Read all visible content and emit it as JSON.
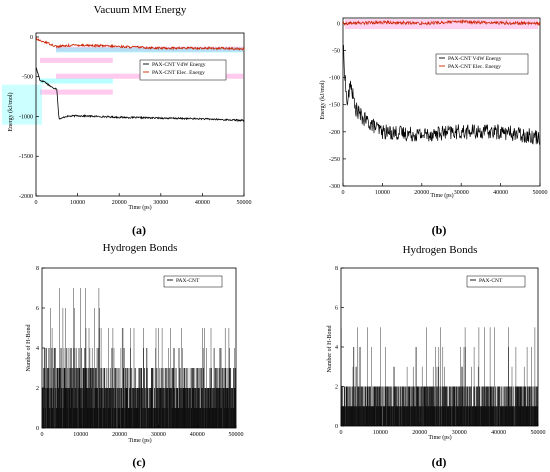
{
  "panels": [
    {
      "id": "a",
      "label": "(a)",
      "chart_data": {
        "type": "line",
        "title": "Vacuum MM Energy",
        "xlabel": "Time (ps)",
        "ylabel": "Energy (kJ/mol)",
        "xlim": [
          0,
          50000
        ],
        "ylim": [
          -2000,
          50
        ],
        "xticks": [
          0,
          10000,
          20000,
          30000,
          40000,
          50000
        ],
        "yticks": [
          -2000,
          -1500,
          -1000,
          -500,
          0
        ],
        "xtick_labels": [
          "0",
          "10000",
          "20000",
          "30000",
          "40000",
          "50000"
        ],
        "ytick_labels": [
          "-2000",
          "-1500",
          "-1000",
          "-500",
          "0"
        ],
        "grid": false,
        "legend": "right, near top",
        "series": [
          {
            "name": "PAX-CNT VdW Energy",
            "color": "#000000",
            "x": [
              0,
              1000,
              2000,
              3000,
              4000,
              5000,
              5500,
              6000,
              7000,
              10000,
              20000,
              30000,
              40000,
              50000
            ],
            "y": [
              -380,
              -550,
              -560,
              -600,
              -640,
              -650,
              -1020,
              -1030,
              -1000,
              -990,
              -1010,
              -1020,
              -1030,
              -1050
            ]
          },
          {
            "name": "PAX-CNT Elec. Energy",
            "color": "#cc2200",
            "x": [
              0,
              1000,
              2000,
              5000,
              10000,
              20000,
              30000,
              40000,
              50000
            ],
            "y": [
              -20,
              -50,
              -60,
              -120,
              -100,
              -120,
              -140,
              -140,
              -150
            ]
          }
        ],
        "overlay_artifacts": {
          "colors": [
            "#ff66cc",
            "#33ffff"
          ]
        }
      }
    },
    {
      "id": "b",
      "label": "(b)",
      "chart_data": {
        "type": "line",
        "title": "",
        "xlabel": "Time (ps)",
        "ylabel": "Energy (kJ/mol)",
        "xlim": [
          0,
          50000
        ],
        "ylim": [
          -300,
          10
        ],
        "xticks": [
          0,
          10000,
          20000,
          30000,
          40000,
          50000
        ],
        "yticks": [
          -300,
          -250,
          -200,
          -150,
          -100,
          -50,
          0
        ],
        "xtick_labels": [
          "0",
          "10000",
          "20000",
          "30000",
          "40000",
          "50000"
        ],
        "ytick_labels": [
          "-300",
          "-250",
          "-200",
          "-150",
          "-100",
          "-50",
          "0"
        ],
        "grid": false,
        "legend": "right, upper",
        "series": [
          {
            "name": "PAX-CNT VdW Energy",
            "color": "#000000",
            "x": [
              0,
              1000,
              2000,
              3000,
              5000,
              10000,
              20000,
              30000,
              40000,
              50000
            ],
            "y": [
              -40,
              -150,
              -110,
              -155,
              -175,
              -200,
              -205,
              -200,
              -200,
              -210
            ]
          },
          {
            "name": "PAX-CNT Elec. Energy",
            "color": "#cc2200",
            "x": [
              0,
              10000,
              20000,
              30000,
              40000,
              50000
            ],
            "y": [
              0,
              2,
              0,
              3,
              1,
              0
            ]
          }
        ],
        "overlay_artifacts": {
          "colors": [
            "#ff66cc"
          ]
        }
      }
    },
    {
      "id": "c",
      "label": "(c)",
      "chart_data": {
        "type": "bar",
        "title": "Hydrogen Bonds",
        "xlabel": "Time (ps)",
        "ylabel": "Number of H-Bond",
        "xlim": [
          0,
          50000
        ],
        "ylim": [
          0,
          8
        ],
        "xticks": [
          0,
          10000,
          20000,
          30000,
          40000,
          50000
        ],
        "yticks": [
          0,
          2,
          4,
          6,
          8
        ],
        "xtick_labels": [
          "0",
          "10000",
          "20000",
          "30000",
          "40000",
          "50000"
        ],
        "ytick_labels": [
          "0",
          "2",
          "4",
          "6",
          "8"
        ],
        "grid": false,
        "legend": "top-right",
        "series": [
          {
            "name": "PAX-CNT",
            "color": "#000000",
            "segments": [
              {
                "x_start": 0,
                "x_end": 15000,
                "typical": [
                  1,
                  4
                ],
                "max": 7
              },
              {
                "x_start": 15000,
                "x_end": 50000,
                "typical": [
                  1,
                  3
                ],
                "max": 5
              }
            ]
          }
        ]
      }
    },
    {
      "id": "d",
      "label": "(d)",
      "chart_data": {
        "type": "bar",
        "title": "Hydrogen Bonds",
        "xlabel": "Time (ps)",
        "ylabel": "Number of H-Bond",
        "xlim": [
          0,
          50000
        ],
        "ylim": [
          0,
          8
        ],
        "xticks": [
          0,
          10000,
          20000,
          30000,
          40000,
          50000
        ],
        "yticks": [
          0,
          2,
          4,
          6,
          8
        ],
        "xtick_labels": [
          "0",
          "10000",
          "20000",
          "30000",
          "40000",
          "50000"
        ],
        "ytick_labels": [
          "0",
          "2",
          "4",
          "6",
          "8"
        ],
        "grid": false,
        "legend": "top-right",
        "series": [
          {
            "name": "PAX-CNT",
            "color": "#000000",
            "segments": [
              {
                "x_start": 0,
                "x_end": 50000,
                "typical": [
                  1,
                  2
                ],
                "max": 5
              }
            ]
          }
        ]
      }
    }
  ]
}
